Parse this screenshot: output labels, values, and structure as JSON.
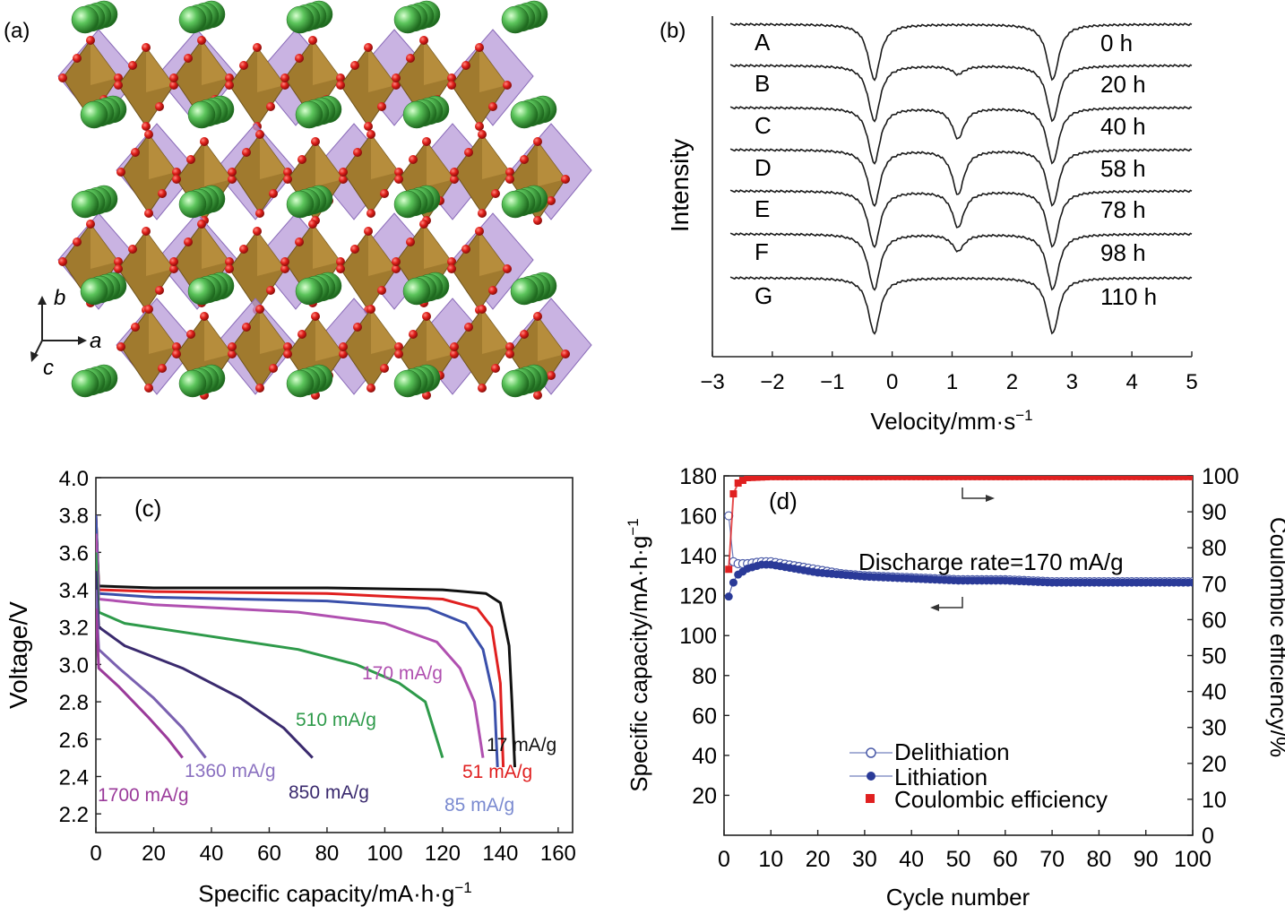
{
  "panel_a": {
    "label": "(a)",
    "axes": {
      "b": "b",
      "a": "a",
      "c": "c"
    },
    "colors": {
      "octahedron": "#a07a2e",
      "tetrahedron": "#b79ad8",
      "oxygen": "#e0201b",
      "lithium": "#4caf50"
    }
  },
  "panel_b": {
    "label": "(b)",
    "ylabel": "Intensity",
    "xlabel_main": "Velocity/mm·s",
    "xlabel_sup": "−1",
    "xticks": [
      "−3",
      "−2",
      "−1",
      "0",
      "1",
      "2",
      "3",
      "4",
      "5"
    ],
    "spectra": [
      {
        "letter": "A",
        "time": "0 h",
        "mid_depth": 0
      },
      {
        "letter": "B",
        "time": "20 h",
        "mid_depth": 0.15
      },
      {
        "letter": "C",
        "time": "40 h",
        "mid_depth": 0.55
      },
      {
        "letter": "D",
        "time": "58 h",
        "mid_depth": 0.8
      },
      {
        "letter": "E",
        "time": "78 h",
        "mid_depth": 0.65
      },
      {
        "letter": "F",
        "time": "98 h",
        "mid_depth": 0.3
      },
      {
        "letter": "G",
        "time": "110 h",
        "mid_depth": 0
      }
    ]
  },
  "panel_c": {
    "label": "(c)",
    "chart_data": {
      "type": "line",
      "xlabel": "Specific capacity/mA·h·g",
      "xlabel_sup": "−1",
      "ylabel": "Voltage/V",
      "xlim": [
        0,
        165
      ],
      "ylim": [
        2.1,
        4.0
      ],
      "xticks": [
        "0",
        "20",
        "40",
        "60",
        "80",
        "100",
        "120",
        "140",
        "160"
      ],
      "yticks": [
        "2.2",
        "2.4",
        "2.6",
        "2.8",
        "3.0",
        "3.2",
        "3.4",
        "3.6",
        "3.8",
        "4.0"
      ],
      "series": [
        {
          "name": "17 mA/g",
          "color": "#111111",
          "points": [
            [
              0,
              3.8
            ],
            [
              1,
              3.42
            ],
            [
              20,
              3.41
            ],
            [
              80,
              3.41
            ],
            [
              120,
              3.4
            ],
            [
              135,
              3.38
            ],
            [
              140,
              3.33
            ],
            [
              143,
              3.1
            ],
            [
              144,
              2.8
            ],
            [
              145,
              2.45
            ]
          ]
        },
        {
          "name": "51 mA/g",
          "color": "#e02020",
          "points": [
            [
              0,
              3.8
            ],
            [
              1,
              3.4
            ],
            [
              20,
              3.39
            ],
            [
              80,
              3.38
            ],
            [
              120,
              3.35
            ],
            [
              132,
              3.3
            ],
            [
              137,
              3.2
            ],
            [
              140,
              2.9
            ],
            [
              141,
              2.45
            ]
          ]
        },
        {
          "name": "85 mA/g",
          "color": "#3a4faa",
          "points": [
            [
              0,
              3.8
            ],
            [
              1,
              3.38
            ],
            [
              20,
              3.36
            ],
            [
              80,
              3.34
            ],
            [
              115,
              3.3
            ],
            [
              128,
              3.22
            ],
            [
              134,
              3.08
            ],
            [
              138,
              2.8
            ],
            [
              139,
              2.45
            ]
          ]
        },
        {
          "name": "170 mA/g",
          "color": "#b050b0",
          "points": [
            [
              0,
              3.7
            ],
            [
              1,
              3.35
            ],
            [
              20,
              3.32
            ],
            [
              70,
              3.28
            ],
            [
              100,
              3.22
            ],
            [
              118,
              3.12
            ],
            [
              126,
              2.98
            ],
            [
              131,
              2.8
            ],
            [
              134,
              2.5
            ]
          ]
        },
        {
          "name": "510 mA/g",
          "color": "#2e9a4a",
          "points": [
            [
              0,
              3.6
            ],
            [
              1,
              3.28
            ],
            [
              10,
              3.22
            ],
            [
              40,
              3.15
            ],
            [
              70,
              3.08
            ],
            [
              90,
              3.0
            ],
            [
              105,
              2.9
            ],
            [
              114,
              2.8
            ],
            [
              120,
              2.5
            ]
          ]
        },
        {
          "name": "850 mA/g",
          "color": "#3a2a6e",
          "points": [
            [
              0,
              3.5
            ],
            [
              1,
              3.2
            ],
            [
              10,
              3.1
            ],
            [
              30,
              2.98
            ],
            [
              50,
              2.82
            ],
            [
              65,
              2.66
            ],
            [
              75,
              2.5
            ]
          ]
        },
        {
          "name": "1360 mA/g",
          "color": "#7a60b0",
          "points": [
            [
              0,
              3.4
            ],
            [
              1,
              3.08
            ],
            [
              8,
              2.98
            ],
            [
              20,
              2.82
            ],
            [
              30,
              2.66
            ],
            [
              38,
              2.5
            ]
          ]
        },
        {
          "name": "1700 mA/g",
          "color": "#9a3a9a",
          "points": [
            [
              0,
              3.3
            ],
            [
              1,
              2.98
            ],
            [
              8,
              2.88
            ],
            [
              18,
              2.72
            ],
            [
              25,
              2.6
            ],
            [
              30,
              2.5
            ]
          ]
        }
      ]
    },
    "curve_labels": [
      "17 mA/g",
      "51 mA/g",
      "85 mA/g",
      "170 mA/g",
      "510 mA/g",
      "850 mA/g",
      "1360 mA/g",
      "1700 mA/g"
    ]
  },
  "panel_d": {
    "label": "(d)",
    "chart_data": {
      "type": "scatter",
      "xlabel": "Cycle number",
      "ylabel_left": "Specific capacity/mA·h·g",
      "ylabel_left_sup": "−1",
      "ylabel_right": "Coulombic efficiency/%",
      "xlim": [
        0,
        100
      ],
      "ylim_left": [
        0,
        180
      ],
      "ylim_right": [
        0,
        100
      ],
      "xticks": [
        "0",
        "10",
        "20",
        "30",
        "40",
        "50",
        "60",
        "70",
        "80",
        "90",
        "100"
      ],
      "yticks_left": [
        "20",
        "40",
        "60",
        "80",
        "100",
        "120",
        "140",
        "160",
        "180"
      ],
      "yticks_right": [
        "0",
        "10",
        "20",
        "30",
        "40",
        "50",
        "60",
        "70",
        "80",
        "90",
        "100"
      ],
      "annotation": "Discharge rate=170 mA/g",
      "series": [
        {
          "name": "Delithiation",
          "color": "#4a5aa8",
          "marker": "open-circle",
          "values": [
            [
              1,
              160
            ],
            [
              2,
              137
            ],
            [
              3,
              136
            ],
            [
              5,
              136
            ],
            [
              8,
              137
            ],
            [
              10,
              137
            ],
            [
              15,
              135
            ],
            [
              20,
              133
            ],
            [
              25,
              131
            ],
            [
              30,
              130
            ],
            [
              40,
              129
            ],
            [
              50,
              128
            ],
            [
              60,
              128
            ],
            [
              70,
              127
            ],
            [
              80,
              127
            ],
            [
              90,
              127
            ],
            [
              100,
              127
            ]
          ]
        },
        {
          "name": "Lithiation",
          "color": "#2a3a98",
          "marker": "filled-circle",
          "values": [
            [
              1,
              120
            ],
            [
              2,
              127
            ],
            [
              3,
              131
            ],
            [
              5,
              134
            ],
            [
              8,
              136
            ],
            [
              10,
              136
            ],
            [
              15,
              134
            ],
            [
              20,
              132
            ],
            [
              25,
              131
            ],
            [
              30,
              130
            ],
            [
              40,
              129
            ],
            [
              50,
              128
            ],
            [
              60,
              128
            ],
            [
              70,
              127
            ],
            [
              80,
              127
            ],
            [
              90,
              127
            ],
            [
              100,
              127
            ]
          ]
        },
        {
          "name": "Coulombic efficiency",
          "color": "#e02020",
          "marker": "filled-square",
          "values": [
            [
              1,
              74
            ],
            [
              2,
              95
            ],
            [
              3,
              98
            ],
            [
              5,
              99.5
            ],
            [
              10,
              99.8
            ],
            [
              20,
              99.8
            ],
            [
              40,
              99.8
            ],
            [
              60,
              99.8
            ],
            [
              80,
              99.8
            ],
            [
              100,
              99.8
            ]
          ]
        }
      ]
    },
    "legend": [
      "Delithiation",
      "Lithiation",
      "Coulombic efficiency"
    ]
  }
}
